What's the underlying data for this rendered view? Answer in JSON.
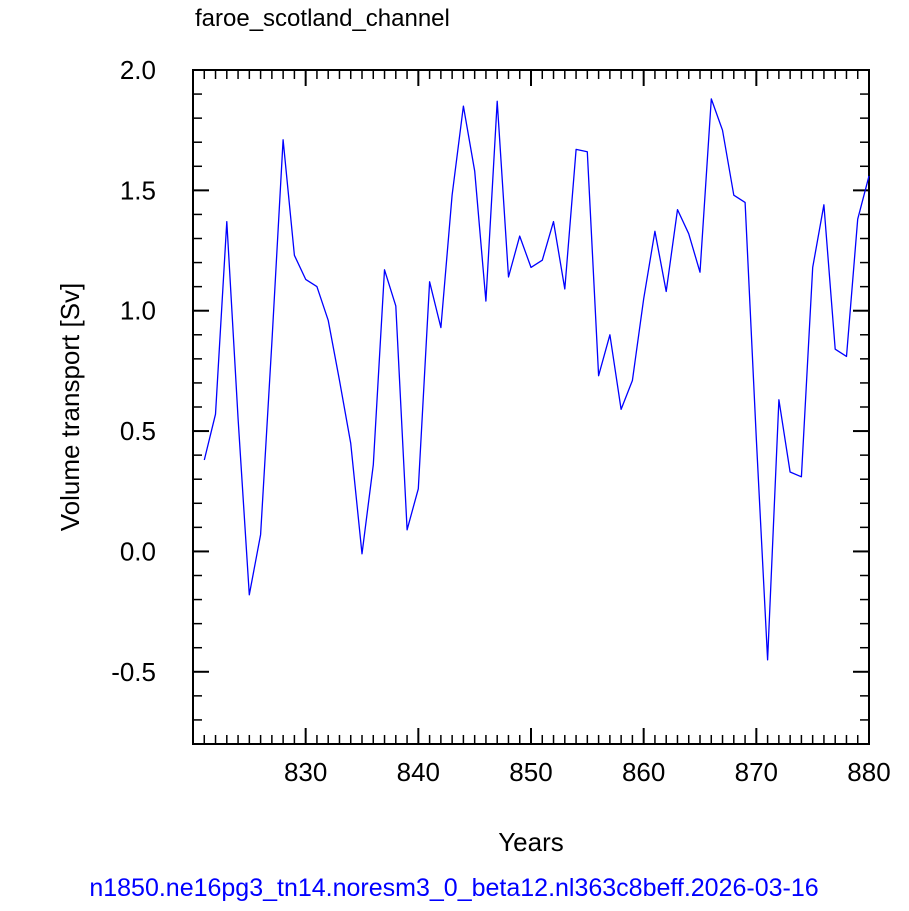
{
  "chart_data": {
    "type": "line",
    "title": "faroe_scotland_channel",
    "xlabel": "Years",
    "ylabel": "Volume transport [Sv]",
    "footer": "n1850.ne16pg3_tn14.noresm3_0_beta12.nl363c8beff.2026-03-16",
    "xlim": [
      820,
      880
    ],
    "ylim": [
      -0.8,
      2.0
    ],
    "x_ticks": [
      830,
      840,
      850,
      860,
      870,
      880
    ],
    "y_ticks": [
      -0.5,
      0.0,
      0.5,
      1.0,
      1.5,
      2.0
    ],
    "x_tick_labels": [
      "830",
      "840",
      "850",
      "860",
      "870",
      "880"
    ],
    "y_tick_labels": [
      "-0.5",
      "0.0",
      "0.5",
      "1.0",
      "1.5",
      "2.0"
    ],
    "grid": false,
    "series": [
      {
        "color": "#0000ff",
        "x": [
          821,
          822,
          823,
          824,
          825,
          826,
          827,
          828,
          829,
          830,
          831,
          832,
          833,
          834,
          835,
          836,
          837,
          838,
          839,
          840,
          841,
          842,
          843,
          844,
          845,
          846,
          847,
          848,
          849,
          850,
          851,
          852,
          853,
          854,
          855,
          856,
          857,
          858,
          859,
          860,
          861,
          862,
          863,
          864,
          865,
          866,
          867,
          868,
          869,
          870,
          871,
          872,
          873,
          874,
          875,
          876,
          877,
          878,
          879,
          880
        ],
        "y": [
          0.38,
          0.57,
          1.37,
          0.55,
          -0.18,
          0.07,
          0.87,
          1.71,
          1.23,
          1.13,
          1.1,
          0.96,
          0.71,
          0.45,
          -0.01,
          0.36,
          1.17,
          1.02,
          0.09,
          0.26,
          1.12,
          0.93,
          1.48,
          1.85,
          1.58,
          1.04,
          1.87,
          1.14,
          1.31,
          1.18,
          1.21,
          1.37,
          1.09,
          1.67,
          1.66,
          0.73,
          0.9,
          0.59,
          0.71,
          1.05,
          1.33,
          1.08,
          1.42,
          1.32,
          1.16,
          1.88,
          1.75,
          1.48,
          1.45,
          0.47,
          -0.45,
          0.63,
          0.33,
          0.31,
          1.18,
          1.44,
          0.84,
          0.81,
          1.38,
          1.56
        ]
      }
    ]
  }
}
